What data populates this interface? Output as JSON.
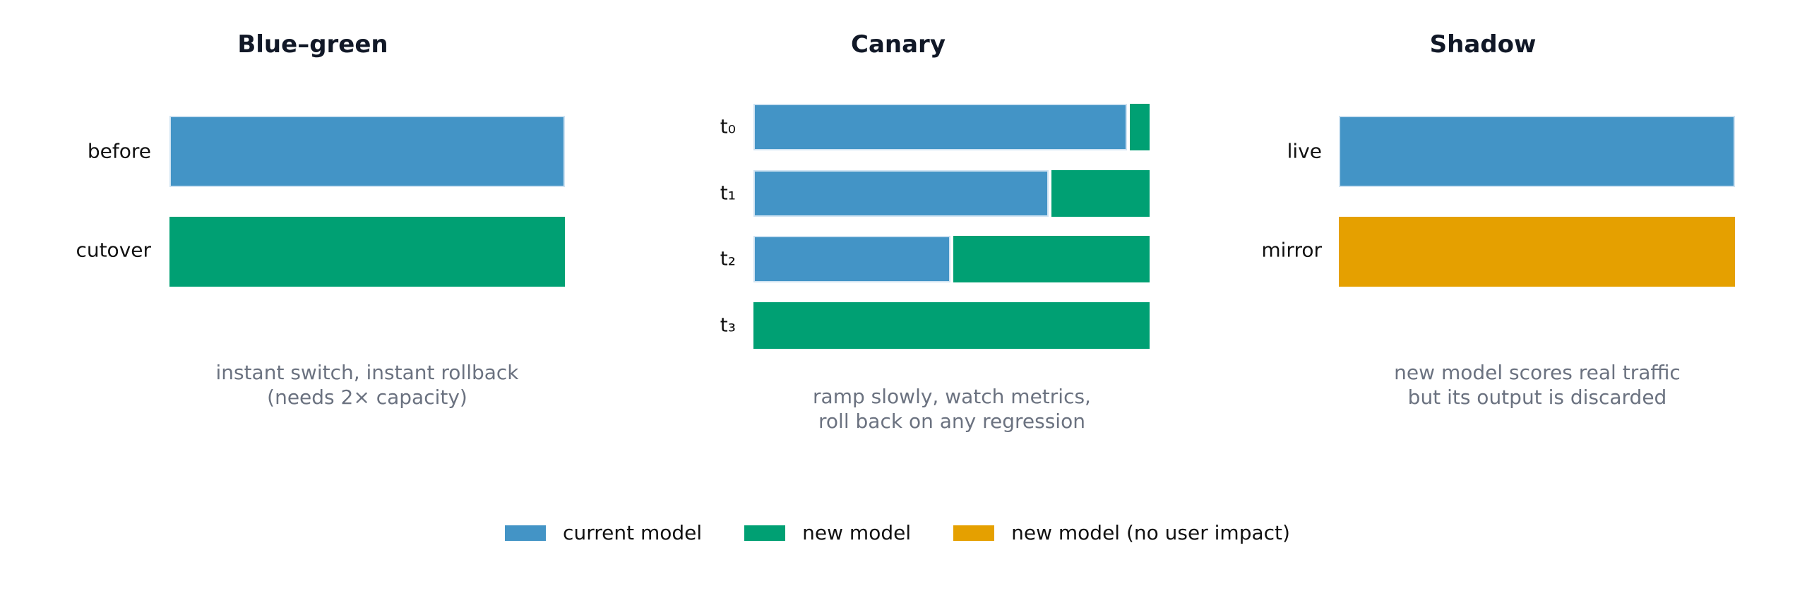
{
  "panels": [
    {
      "title": "Blue–green",
      "rows": [
        {
          "label": "before",
          "segments": [
            {
              "kind": "current",
              "fraction": 1.0
            }
          ]
        },
        {
          "label": "cutover",
          "segments": [
            {
              "kind": "new",
              "fraction": 1.0
            }
          ]
        }
      ],
      "caption": [
        "instant switch, instant rollback",
        "(needs 2× capacity)"
      ]
    },
    {
      "title": "Canary",
      "rows": [
        {
          "label": "t₀",
          "segments": [
            {
              "kind": "current",
              "fraction": 0.95
            },
            {
              "kind": "new",
              "fraction": 0.05
            }
          ]
        },
        {
          "label": "t₁",
          "segments": [
            {
              "kind": "current",
              "fraction": 0.75
            },
            {
              "kind": "new",
              "fraction": 0.25
            }
          ]
        },
        {
          "label": "t₂",
          "segments": [
            {
              "kind": "current",
              "fraction": 0.5
            },
            {
              "kind": "new",
              "fraction": 0.5
            }
          ]
        },
        {
          "label": "t₃",
          "segments": [
            {
              "kind": "new",
              "fraction": 1.0
            }
          ]
        }
      ],
      "caption": [
        "ramp slowly, watch metrics,",
        "roll back on any regression"
      ]
    },
    {
      "title": "Shadow",
      "rows": [
        {
          "label": "live",
          "segments": [
            {
              "kind": "current",
              "fraction": 1.0
            }
          ]
        },
        {
          "label": "mirror",
          "segments": [
            {
              "kind": "shadow",
              "fraction": 1.0
            }
          ]
        }
      ],
      "caption": [
        "new model scores real traffic",
        "but its output is discarded"
      ]
    }
  ],
  "legend": [
    {
      "kind": "current",
      "label": "current model",
      "color": "#4394c6"
    },
    {
      "kind": "new",
      "label": "new model",
      "color": "#00a073"
    },
    {
      "kind": "shadow",
      "label": "new model (no user impact)",
      "color": "#e5a000"
    }
  ]
}
